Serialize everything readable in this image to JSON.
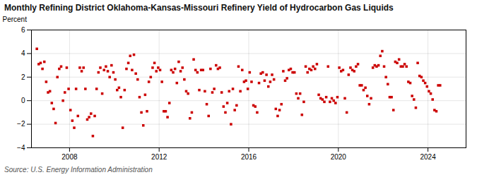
{
  "chart_data": {
    "type": "scatter",
    "title": "Monthly Refining District Oklahoma-Kansas-Missouri Refinery Yield of Hydrocarbon Gas Liquids",
    "ylabel": "Percent",
    "source": "Source: U.S. Energy Information Administration",
    "color": "#cc0000",
    "marker": "square",
    "grid": true,
    "xlim": [
      2006.3,
      2025.7
    ],
    "xticks": [
      2008,
      2012,
      2016,
      2020,
      2024
    ],
    "ylim": [
      -4,
      6
    ],
    "yticks": [
      -4,
      -2,
      0,
      2,
      4,
      6
    ],
    "x": [
      2006.5416666666667,
      2006.625,
      2006.7083333333333,
      2006.7916666666667,
      2006.875,
      2006.9583333333333,
      2007.0416666666667,
      2007.125,
      2007.2083333333333,
      2007.2916666666667,
      2007.375,
      2007.4583333333333,
      2007.5416666666667,
      2007.625,
      2007.7083333333333,
      2007.7916666666667,
      2007.875,
      2007.9583333333333,
      2008.0416666666667,
      2008.125,
      2008.2083333333333,
      2008.2916666666667,
      2008.375,
      2008.4583333333333,
      2008.5416666666667,
      2008.625,
      2008.7083333333333,
      2008.7916666666667,
      2008.875,
      2008.9583333333333,
      2009.0416666666667,
      2009.125,
      2009.2083333333333,
      2009.2916666666667,
      2009.375,
      2009.4583333333333,
      2009.5416666666667,
      2009.625,
      2009.7083333333333,
      2009.7916666666667,
      2009.875,
      2009.9583333333333,
      2010.0416666666667,
      2010.125,
      2010.2083333333333,
      2010.2916666666667,
      2010.375,
      2010.4583333333333,
      2010.5416666666667,
      2010.625,
      2010.7083333333333,
      2010.7916666666667,
      2010.875,
      2010.9583333333333,
      2011.0416666666667,
      2011.125,
      2011.2083333333333,
      2011.2916666666667,
      2011.375,
      2011.4583333333333,
      2011.5416666666667,
      2011.625,
      2011.7083333333333,
      2011.7916666666667,
      2011.875,
      2011.9583333333333,
      2012.0416666666667,
      2012.125,
      2012.2083333333333,
      2012.2916666666667,
      2012.375,
      2012.4583333333333,
      2012.5416666666667,
      2012.625,
      2012.7083333333333,
      2012.7916666666667,
      2012.875,
      2012.9583333333333,
      2013.0416666666667,
      2013.125,
      2013.2083333333333,
      2013.2916666666667,
      2013.375,
      2013.4583333333333,
      2013.5416666666667,
      2013.625,
      2013.7083333333333,
      2013.7916666666667,
      2013.875,
      2013.9583333333333,
      2014.0416666666667,
      2014.125,
      2014.2083333333333,
      2014.2916666666667,
      2014.375,
      2014.4583333333333,
      2014.5416666666667,
      2014.625,
      2014.7083333333333,
      2014.7916666666667,
      2014.875,
      2014.9583333333333,
      2015.0416666666667,
      2015.125,
      2015.2083333333333,
      2015.2916666666667,
      2015.375,
      2015.4583333333333,
      2015.5416666666667,
      2015.625,
      2015.7083333333333,
      2015.7916666666667,
      2015.875,
      2015.9583333333333,
      2016.0416666666667,
      2016.125,
      2016.2083333333333,
      2016.2916666666667,
      2016.375,
      2016.4583333333333,
      2016.5416666666667,
      2016.625,
      2016.7083333333333,
      2016.7916666666667,
      2016.875,
      2016.9583333333333,
      2017.0416666666667,
      2017.125,
      2017.2083333333333,
      2017.2916666666667,
      2017.375,
      2017.4583333333333,
      2017.5416666666667,
      2017.625,
      2017.7083333333333,
      2017.7916666666667,
      2017.875,
      2017.9583333333333,
      2018.0416666666667,
      2018.125,
      2018.2083333333333,
      2018.2916666666667,
      2018.375,
      2018.4583333333333,
      2018.5416666666667,
      2018.625,
      2018.7083333333333,
      2018.7916666666667,
      2018.875,
      2018.9583333333333,
      2019.0416666666667,
      2019.125,
      2019.2083333333333,
      2019.2916666666667,
      2019.375,
      2019.4583333333333,
      2019.5416666666667,
      2019.625,
      2019.7083333333333,
      2019.7916666666667,
      2019.875,
      2019.9583333333333,
      2020.0416666666667,
      2020.125,
      2020.2083333333333,
      2020.2916666666667,
      2020.375,
      2020.4583333333333,
      2020.5416666666667,
      2020.625,
      2020.7083333333333,
      2020.7916666666667,
      2020.875,
      2020.9583333333333,
      2021.0416666666667,
      2021.125,
      2021.2083333333333,
      2021.2916666666667,
      2021.375,
      2021.4583333333333,
      2021.5416666666667,
      2021.625,
      2021.7083333333333,
      2021.7916666666667,
      2021.875,
      2021.9583333333333,
      2022.0416666666667,
      2022.125,
      2022.2083333333333,
      2022.2916666666667,
      2022.375,
      2022.4583333333333,
      2022.5416666666667,
      2022.625,
      2022.7083333333333,
      2022.7916666666667,
      2022.875,
      2022.9583333333333,
      2023.0416666666667,
      2023.125,
      2023.2083333333333,
      2023.2916666666667,
      2023.375,
      2023.4583333333333,
      2023.5416666666667,
      2023.625,
      2023.7083333333333,
      2023.7916666666667,
      2023.875,
      2023.9583333333333,
      2024.0416666666667,
      2024.125,
      2024.2083333333333,
      2024.2916666666667,
      2024.375,
      2024.4583333333333,
      2024.5416666666667
    ],
    "values": [
      4.4,
      3.1,
      3.2,
      2.7,
      3.3,
      1.6,
      0.7,
      0.8,
      -0.2,
      -0.7,
      -1.9,
      2.0,
      2.7,
      2.9,
      0.0,
      0.7,
      2.8,
      1.0,
      -0.8,
      -1.7,
      -2.3,
      1.0,
      -1.3,
      2.8,
      2.5,
      2.8,
      1.0,
      -1.6,
      -1.4,
      -1.1,
      -3.0,
      -1.3,
      1.0,
      2.4,
      2.8,
      0.6,
      2.6,
      2.9,
      2.5,
      2.0,
      3.0,
      2.4,
      1.8,
      0.9,
      1.1,
      0.3,
      -2.3,
      0.9,
      2.7,
      3.2,
      3.8,
      2.6,
      3.9,
      2.3,
      1.8,
      0.3,
      -1.0,
      -2.1,
      0.5,
      -0.9,
      1.6,
      2.0,
      2.8,
      3.2,
      2.5,
      2.8,
      2.6,
      1.6,
      -0.9,
      -0.9,
      -1.4,
      -0.2,
      2.6,
      2.4,
      2.7,
      1.5,
      3.3,
      2.5,
      2.8,
      1.8,
      0.8,
      0.6,
      -1.5,
      -1.0,
      3.5,
      2.6,
      2.4,
      0.9,
      2.6,
      2.6,
      0.8,
      -0.3,
      -1.3,
      2.7,
      0.7,
      1.0,
      3.0,
      2.7,
      2.8,
      0.7,
      -0.5,
      -1.0,
      -0.2,
      0.8,
      -2.0,
      1.0,
      -0.8,
      -0.4,
      2.9,
      0.8,
      2.6,
      1.6,
      1.7,
      1.0,
      2.4,
      1.6,
      -0.4,
      -0.5,
      -1.0,
      1.5,
      2.3,
      2.4,
      1.7,
      2.2,
      1.2,
      1.6,
      2.2,
      1.8,
      -0.7,
      -1.3,
      -0.8,
      -0.3,
      2.5,
      1.7,
      1.9,
      2.6,
      2.7,
      2.4,
      2.4,
      0.6,
      0.2,
      0.6,
      -1.2,
      -0.1,
      2.9,
      2.4,
      2.7,
      2.6,
      2.9,
      2.7,
      3.1,
      0.5,
      0.2,
      0.1,
      -0.1,
      0.3,
      2.9,
      -0.1,
      0.2,
      0.0,
      -0.2,
      0.3,
      2.8,
      2.5,
      2.6,
      0.2,
      -1.0,
      2.2,
      2.8,
      2.6,
      2.5,
      2.9,
      3.1,
      1.3,
      1.3,
      0.9,
      1.1,
      0.4,
      -0.3,
      0.2,
      2.8,
      3.0,
      2.9,
      3.0,
      3.8,
      4.2,
      2.9,
      2.0,
      1.4,
      0.3,
      0.3,
      -0.8,
      3.3,
      3.2,
      3.5,
      2.9,
      2.9,
      3.1,
      2.9,
      1.6,
      1.5,
      0.4,
      0.1,
      -0.6,
      3.2,
      2.1,
      2.0,
      1.7,
      1.5,
      1.2,
      0.8,
      0.6,
      0.1,
      -0.8,
      -0.9,
      1.3,
      1.3
    ]
  }
}
